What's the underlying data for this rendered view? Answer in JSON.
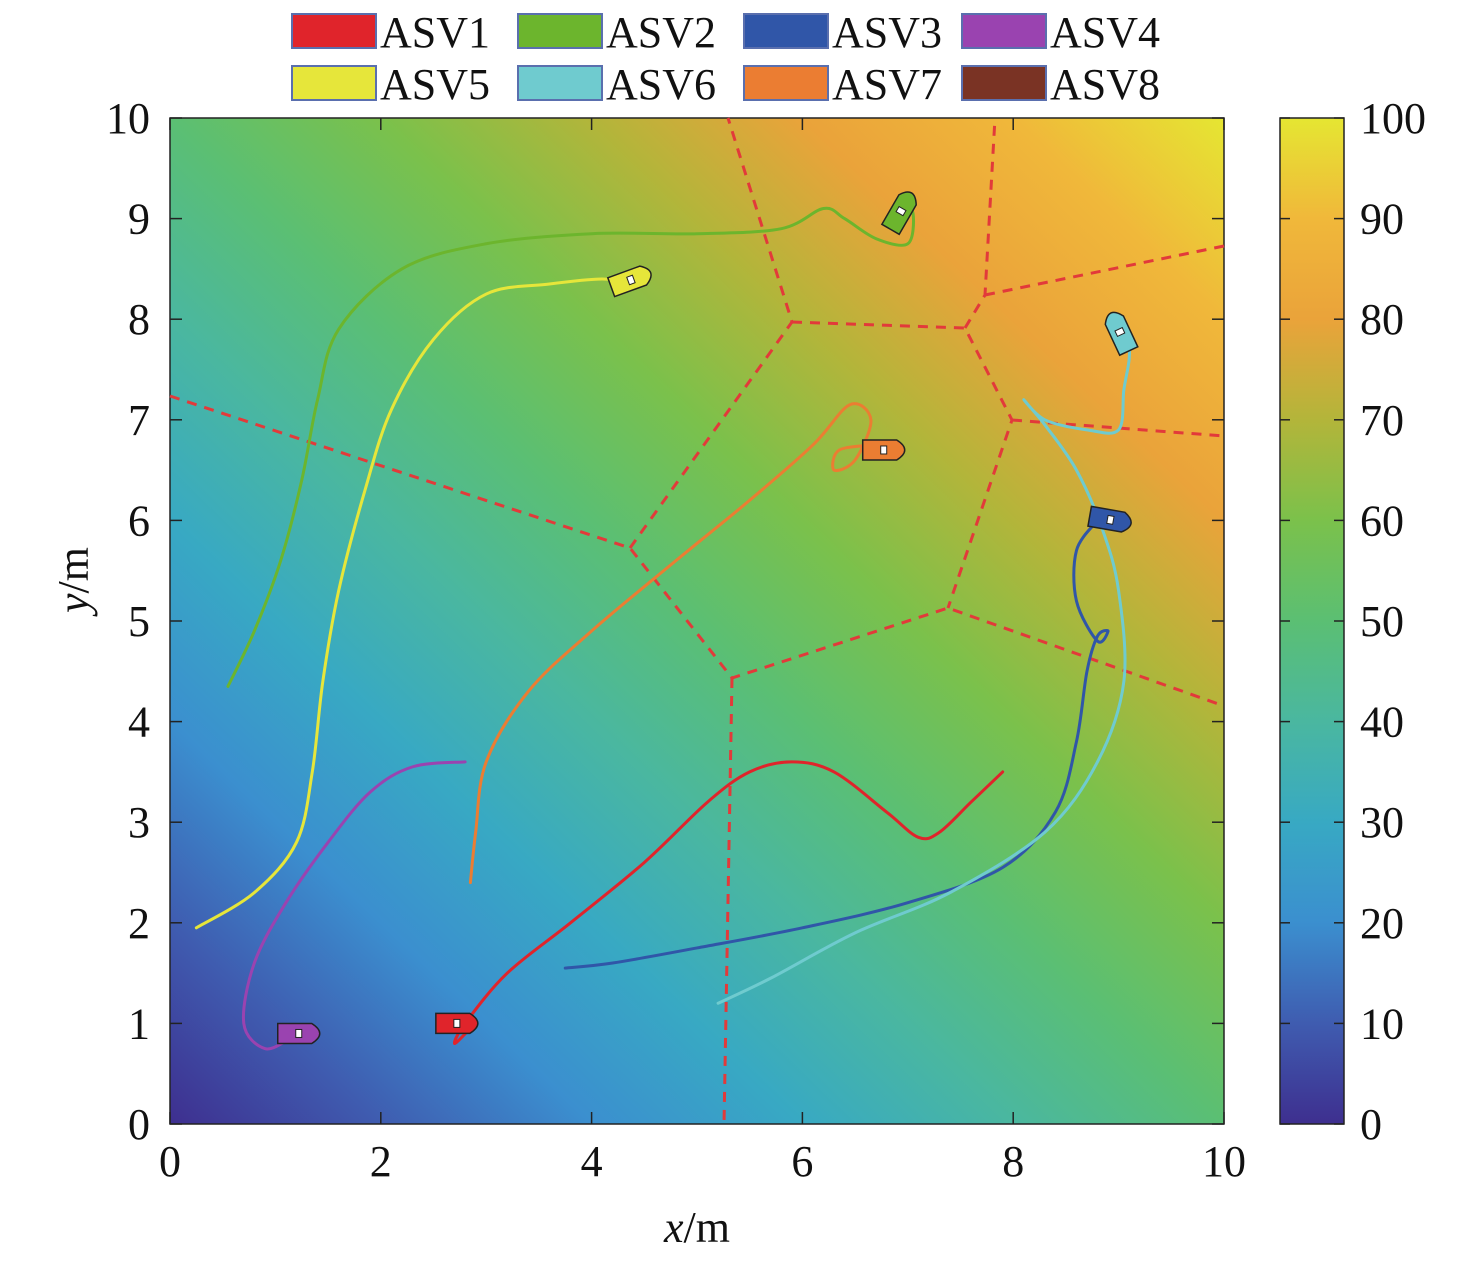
{
  "chart_data": {
    "type": "scatter",
    "title": "",
    "xlabel_italic": "x",
    "xlabel_unit": "/m",
    "ylabel_italic": "y",
    "ylabel_unit": "/m",
    "xlim": [
      0,
      10
    ],
    "ylim": [
      0,
      10
    ],
    "xticks": [
      "0",
      "2",
      "4",
      "6",
      "8",
      "10"
    ],
    "yticks": [
      "0",
      "1",
      "2",
      "3",
      "4",
      "5",
      "6",
      "7",
      "8",
      "9",
      "10"
    ],
    "colorbar": {
      "range": [
        0,
        100
      ],
      "ticks": [
        "0",
        "10",
        "20",
        "30",
        "40",
        "50",
        "60",
        "70",
        "80",
        "90",
        "100"
      ],
      "colormap": [
        "#3e2f8f",
        "#3f5cb0",
        "#3b8fcf",
        "#38a9c3",
        "#4ab7a0",
        "#5bbf73",
        "#7bc14b",
        "#b3b53a",
        "#eaa33a",
        "#f0b83a",
        "#e5e632"
      ]
    },
    "field_gradient": {
      "low_corner": "bottom-left",
      "high_corner": "top-right"
    },
    "grid": false,
    "legend": {
      "placement": "top",
      "columns": 4
    },
    "series": [
      {
        "name": "ASV1",
        "color": "#e0242b",
        "path": [
          [
            7.9,
            3.5
          ],
          [
            7.6,
            3.2
          ],
          [
            7.3,
            2.9
          ],
          [
            7.1,
            2.85
          ],
          [
            6.8,
            3.1
          ],
          [
            6.3,
            3.5
          ],
          [
            5.9,
            3.6
          ],
          [
            5.5,
            3.5
          ],
          [
            5.1,
            3.2
          ],
          [
            4.5,
            2.6
          ],
          [
            3.8,
            2.0
          ],
          [
            3.2,
            1.5
          ],
          [
            2.8,
            1.0
          ],
          [
            2.7,
            0.8
          ],
          [
            2.85,
            0.95
          ]
        ],
        "boat": {
          "x": 2.75,
          "y": 1.0,
          "heading": 0
        }
      },
      {
        "name": "ASV2",
        "color": "#6cb52d",
        "path": [
          [
            0.55,
            4.35
          ],
          [
            0.8,
            4.9
          ],
          [
            1.05,
            5.6
          ],
          [
            1.25,
            6.4
          ],
          [
            1.4,
            7.2
          ],
          [
            1.6,
            7.9
          ],
          [
            2.2,
            8.5
          ],
          [
            3.0,
            8.75
          ],
          [
            4.0,
            8.85
          ],
          [
            5.0,
            8.85
          ],
          [
            5.8,
            8.9
          ],
          [
            6.2,
            9.1
          ],
          [
            6.4,
            9.0
          ],
          [
            6.7,
            8.8
          ],
          [
            7.0,
            8.75
          ],
          [
            7.05,
            9.05
          ],
          [
            6.95,
            9.15
          ]
        ],
        "boat": {
          "x": 6.95,
          "y": 9.1,
          "heading": 60
        }
      },
      {
        "name": "ASV3",
        "color": "#3056a8",
        "path": [
          [
            3.75,
            1.55
          ],
          [
            4.2,
            1.6
          ],
          [
            5.0,
            1.75
          ],
          [
            6.0,
            1.95
          ],
          [
            7.0,
            2.2
          ],
          [
            7.9,
            2.55
          ],
          [
            8.4,
            3.1
          ],
          [
            8.6,
            3.8
          ],
          [
            8.7,
            4.5
          ],
          [
            8.8,
            4.85
          ],
          [
            8.9,
            4.9
          ],
          [
            8.8,
            4.8
          ],
          [
            8.6,
            5.2
          ],
          [
            8.6,
            5.7
          ],
          [
            8.8,
            6.0
          ]
        ],
        "boat": {
          "x": 8.95,
          "y": 6.0,
          "heading": -10
        }
      },
      {
        "name": "ASV4",
        "color": "#9a43b0",
        "path": [
          [
            2.8,
            3.6
          ],
          [
            2.3,
            3.55
          ],
          [
            1.9,
            3.3
          ],
          [
            1.5,
            2.8
          ],
          [
            1.1,
            2.2
          ],
          [
            0.8,
            1.6
          ],
          [
            0.7,
            1.0
          ],
          [
            0.9,
            0.75
          ],
          [
            1.15,
            0.85
          ],
          [
            1.3,
            0.9
          ]
        ],
        "boat": {
          "x": 1.25,
          "y": 0.9,
          "heading": 0
        }
      },
      {
        "name": "ASV5",
        "color": "#e6e63a",
        "path": [
          [
            0.25,
            1.95
          ],
          [
            0.8,
            2.3
          ],
          [
            1.2,
            2.8
          ],
          [
            1.35,
            3.5
          ],
          [
            1.45,
            4.4
          ],
          [
            1.6,
            5.3
          ],
          [
            1.85,
            6.3
          ],
          [
            2.1,
            7.1
          ],
          [
            2.5,
            7.8
          ],
          [
            3.0,
            8.25
          ],
          [
            3.6,
            8.35
          ],
          [
            4.1,
            8.4
          ],
          [
            4.4,
            8.35
          ]
        ],
        "boat": {
          "x": 4.4,
          "y": 8.4,
          "heading": 20
        }
      },
      {
        "name": "ASV6",
        "color": "#6fcbcf",
        "path": [
          [
            5.2,
            1.2
          ],
          [
            5.7,
            1.45
          ],
          [
            6.5,
            1.9
          ],
          [
            7.4,
            2.3
          ],
          [
            8.3,
            2.9
          ],
          [
            8.8,
            3.6
          ],
          [
            9.05,
            4.4
          ],
          [
            9.0,
            5.3
          ],
          [
            8.85,
            5.9
          ],
          [
            8.6,
            6.5
          ],
          [
            8.3,
            6.95
          ],
          [
            8.1,
            7.2
          ],
          [
            8.3,
            7.0
          ],
          [
            8.7,
            6.9
          ],
          [
            9.0,
            6.9
          ],
          [
            9.05,
            7.3
          ],
          [
            9.1,
            7.6
          ],
          [
            9.1,
            7.85
          ]
        ],
        "boat": {
          "x": 9.0,
          "y": 7.9,
          "heading": 115
        }
      },
      {
        "name": "ASV7",
        "color": "#eb7d32",
        "path": [
          [
            2.85,
            2.4
          ],
          [
            2.9,
            2.9
          ],
          [
            3.0,
            3.6
          ],
          [
            3.4,
            4.3
          ],
          [
            4.0,
            4.9
          ],
          [
            4.8,
            5.6
          ],
          [
            5.5,
            6.2
          ],
          [
            6.1,
            6.75
          ],
          [
            6.45,
            7.15
          ],
          [
            6.65,
            7.0
          ],
          [
            6.5,
            6.6
          ],
          [
            6.3,
            6.5
          ],
          [
            6.35,
            6.7
          ],
          [
            6.7,
            6.75
          ]
        ],
        "boat": {
          "x": 6.8,
          "y": 6.7,
          "heading": 0
        }
      },
      {
        "name": "ASV8",
        "color": "#7a3324",
        "path": [],
        "boat": null
      }
    ],
    "asv3_path_overlay_color": "#5b3ba4"
  }
}
